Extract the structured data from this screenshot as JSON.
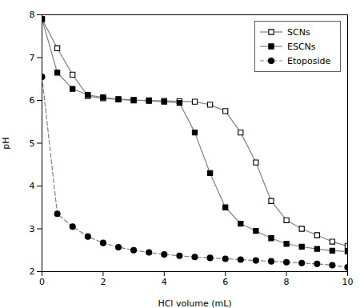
{
  "chart_data": {
    "type": "line",
    "xlabel": "HCl volume (mL)",
    "ylabel": "pH",
    "x": [
      0,
      0.5,
      1.0,
      1.5,
      2.0,
      2.5,
      3.0,
      3.5,
      4.0,
      4.5,
      5.0,
      5.5,
      6.0,
      6.5,
      7.0,
      7.5,
      8.0,
      8.5,
      9.0,
      9.5,
      10.0
    ],
    "series": [
      {
        "name": "SCNs",
        "color": "#808080",
        "marker": "open-square",
        "line_style": "solid",
        "values": [
          7.9,
          7.22,
          6.6,
          6.1,
          6.05,
          6.02,
          6.0,
          6.0,
          5.99,
          5.98,
          5.97,
          5.9,
          5.75,
          5.25,
          4.55,
          3.65,
          3.2,
          3.0,
          2.85,
          2.7,
          2.6
        ]
      },
      {
        "name": "ESCNs",
        "color": "#808080",
        "marker": "square",
        "line_style": "solid",
        "values": [
          7.9,
          6.65,
          6.27,
          6.13,
          6.07,
          6.03,
          6.01,
          5.99,
          5.97,
          5.94,
          5.25,
          4.3,
          3.5,
          3.12,
          2.95,
          2.78,
          2.65,
          2.58,
          2.53,
          2.49,
          2.47
        ]
      },
      {
        "name": "Etoposide",
        "color": "#808080",
        "marker": "circle",
        "line_style": "dashed",
        "values": [
          6.55,
          3.35,
          3.05,
          2.82,
          2.67,
          2.57,
          2.5,
          2.45,
          2.4,
          2.37,
          2.34,
          2.32,
          2.3,
          2.28,
          2.26,
          2.24,
          2.22,
          2.2,
          2.18,
          2.15,
          2.1
        ]
      }
    ],
    "xlim": [
      0,
      10
    ],
    "ylim": [
      2,
      8
    ],
    "xticks": [
      0,
      2,
      4,
      6,
      8,
      10
    ],
    "yticks": [
      2,
      3,
      4,
      5,
      6,
      7,
      8
    ],
    "legend": "upper right"
  }
}
